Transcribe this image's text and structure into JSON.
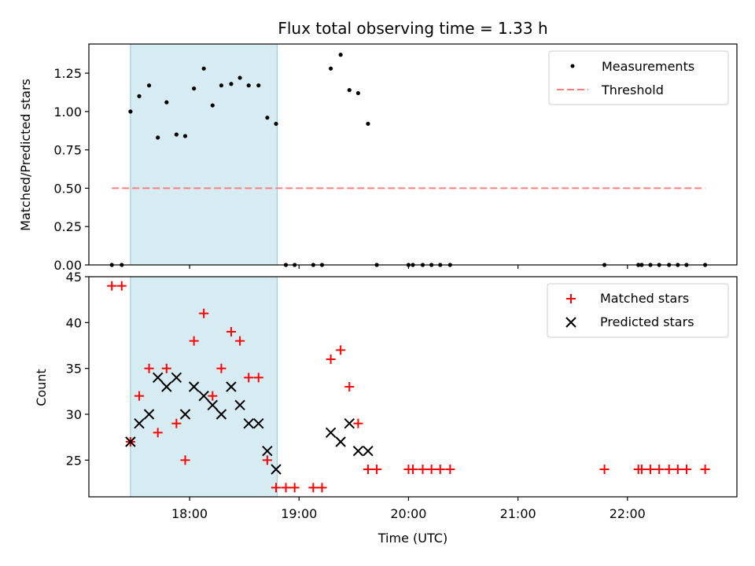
{
  "chart_data": [
    {
      "type": "scatter",
      "title": "Flux total observing time = 1.33 h",
      "xlabel": "",
      "ylabel": "Matched/Predicted stars",
      "xlim": [
        17.08,
        23.0
      ],
      "ylim": [
        0,
        1.44
      ],
      "yticks": [
        0.0,
        0.25,
        0.5,
        0.75,
        1.0,
        1.25
      ],
      "ytick_labels": [
        "0.00",
        "0.25",
        "0.50",
        "0.75",
        "1.00",
        "1.25"
      ],
      "shaded_region": [
        17.46,
        18.8
      ],
      "legend_position": "top-right",
      "series": [
        {
          "name": "Measurements",
          "marker": "dot",
          "color": "#000000",
          "points": [
            [
              17.29,
              0.0
            ],
            [
              17.38,
              0.0
            ],
            [
              17.46,
              1.0
            ],
            [
              17.54,
              1.1
            ],
            [
              17.63,
              1.17
            ],
            [
              17.71,
              0.83
            ],
            [
              17.79,
              1.06
            ],
            [
              17.88,
              0.85
            ],
            [
              17.96,
              0.84
            ],
            [
              18.04,
              1.15
            ],
            [
              18.13,
              1.28
            ],
            [
              18.21,
              1.04
            ],
            [
              18.29,
              1.17
            ],
            [
              18.38,
              1.18
            ],
            [
              18.46,
              1.22
            ],
            [
              18.54,
              1.17
            ],
            [
              18.63,
              1.17
            ],
            [
              18.71,
              0.96
            ],
            [
              18.79,
              0.92
            ],
            [
              18.88,
              0.0
            ],
            [
              18.96,
              0.0
            ],
            [
              19.13,
              0.0
            ],
            [
              19.21,
              0.0
            ],
            [
              19.29,
              1.28
            ],
            [
              19.38,
              1.37
            ],
            [
              19.46,
              1.14
            ],
            [
              19.54,
              1.12
            ],
            [
              19.63,
              0.92
            ],
            [
              19.71,
              0.0
            ],
            [
              20.0,
              0.0
            ],
            [
              20.04,
              0.0
            ],
            [
              20.13,
              0.0
            ],
            [
              20.21,
              0.0
            ],
            [
              20.29,
              0.0
            ],
            [
              20.38,
              0.0
            ],
            [
              21.79,
              0.0
            ],
            [
              22.1,
              0.0
            ],
            [
              22.13,
              0.0
            ],
            [
              22.21,
              0.0
            ],
            [
              22.29,
              0.0
            ],
            [
              22.38,
              0.0
            ],
            [
              22.46,
              0.0
            ],
            [
              22.54,
              0.0
            ],
            [
              22.71,
              0.0
            ]
          ]
        },
        {
          "name": "Threshold",
          "style": "dashed",
          "color": "#ff7f7f",
          "points": [
            [
              17.29,
              0.5
            ],
            [
              22.71,
              0.5
            ]
          ]
        }
      ]
    },
    {
      "type": "scatter",
      "title": "",
      "xlabel": "Time (UTC)",
      "ylabel": "Count",
      "xlim": [
        17.08,
        23.0
      ],
      "ylim": [
        21,
        45
      ],
      "xticks": [
        18,
        19,
        20,
        21,
        22
      ],
      "xtick_labels": [
        "18:00",
        "19:00",
        "20:00",
        "21:00",
        "22:00"
      ],
      "yticks": [
        25,
        30,
        35,
        40,
        45
      ],
      "ytick_labels": [
        "25",
        "30",
        "35",
        "40",
        "45"
      ],
      "shaded_region": [
        17.46,
        18.8
      ],
      "legend_position": "top-right",
      "series": [
        {
          "name": "Matched stars",
          "marker": "plus",
          "color": "#ff0000",
          "points": [
            [
              17.29,
              44
            ],
            [
              17.38,
              44
            ],
            [
              17.46,
              27
            ],
            [
              17.54,
              32
            ],
            [
              17.63,
              35
            ],
            [
              17.71,
              28
            ],
            [
              17.79,
              35
            ],
            [
              17.88,
              29
            ],
            [
              17.96,
              25
            ],
            [
              18.04,
              38
            ],
            [
              18.13,
              41
            ],
            [
              18.21,
              32
            ],
            [
              18.29,
              35
            ],
            [
              18.38,
              39
            ],
            [
              18.46,
              38
            ],
            [
              18.54,
              34
            ],
            [
              18.63,
              34
            ],
            [
              18.71,
              25
            ],
            [
              18.79,
              22
            ],
            [
              18.88,
              22
            ],
            [
              18.96,
              22
            ],
            [
              19.13,
              22
            ],
            [
              19.21,
              22
            ],
            [
              19.29,
              36
            ],
            [
              19.38,
              37
            ],
            [
              19.46,
              33
            ],
            [
              19.54,
              29
            ],
            [
              19.63,
              24
            ],
            [
              19.71,
              24
            ],
            [
              20.0,
              24
            ],
            [
              20.04,
              24
            ],
            [
              20.13,
              24
            ],
            [
              20.21,
              24
            ],
            [
              20.29,
              24
            ],
            [
              20.38,
              24
            ],
            [
              21.79,
              24
            ],
            [
              22.1,
              24
            ],
            [
              22.13,
              24
            ],
            [
              22.21,
              24
            ],
            [
              22.29,
              24
            ],
            [
              22.38,
              24
            ],
            [
              22.46,
              24
            ],
            [
              22.54,
              24
            ],
            [
              22.71,
              24
            ]
          ]
        },
        {
          "name": "Predicted stars",
          "marker": "x",
          "color": "#000000",
          "points": [
            [
              17.46,
              27
            ],
            [
              17.54,
              29
            ],
            [
              17.63,
              30
            ],
            [
              17.71,
              34
            ],
            [
              17.79,
              33
            ],
            [
              17.88,
              34
            ],
            [
              17.96,
              30
            ],
            [
              18.04,
              33
            ],
            [
              18.13,
              32
            ],
            [
              18.21,
              31
            ],
            [
              18.29,
              30
            ],
            [
              18.38,
              33
            ],
            [
              18.46,
              31
            ],
            [
              18.54,
              29
            ],
            [
              18.63,
              29
            ],
            [
              18.71,
              26
            ],
            [
              18.79,
              24
            ],
            [
              19.29,
              28
            ],
            [
              19.38,
              27
            ],
            [
              19.46,
              29
            ],
            [
              19.54,
              26
            ],
            [
              19.63,
              26
            ]
          ]
        }
      ]
    }
  ]
}
